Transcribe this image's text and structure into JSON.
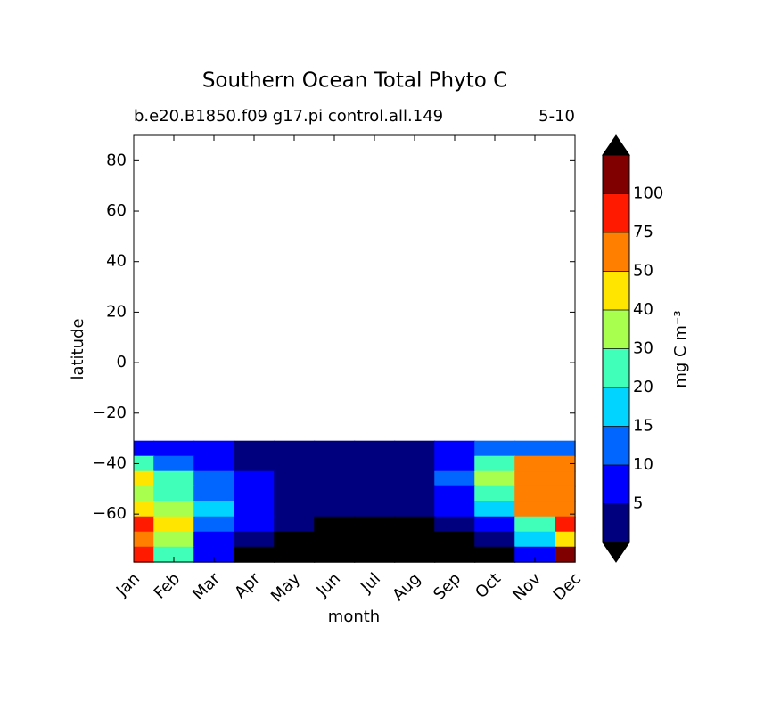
{
  "chart_data": {
    "type": "contour",
    "title": "Southern Ocean Total Phyto C",
    "subtitle_left": "b.e20.B1850.f09 g17.pi control.all.149",
    "subtitle_right": "5-10",
    "x_label": "month",
    "y_label": "latitude",
    "categories": [
      "Jan",
      "Feb",
      "Mar",
      "Apr",
      "May",
      "Jun",
      "Jul",
      "Aug",
      "Sep",
      "Oct",
      "Nov",
      "Dec"
    ],
    "y": [
      -34,
      -40,
      -46,
      -52,
      -58,
      -64,
      -70,
      -76
    ],
    "z": [
      [
        8,
        8,
        7,
        3,
        3,
        2,
        2,
        3,
        7,
        12,
        12,
        10
      ],
      [
        25,
        12,
        8,
        4,
        3,
        2,
        2,
        3,
        8,
        25,
        55,
        55
      ],
      [
        45,
        22,
        12,
        6,
        4,
        3,
        3,
        4,
        10,
        30,
        60,
        60
      ],
      [
        35,
        25,
        14,
        7,
        4,
        3,
        3,
        4,
        8,
        20,
        60,
        60
      ],
      [
        45,
        30,
        15,
        7,
        4,
        3,
        2,
        3,
        6,
        15,
        55,
        70
      ],
      [
        80,
        40,
        10,
        5,
        3,
        0.5,
        0.5,
        0.5,
        3,
        8,
        25,
        80
      ],
      [
        60,
        30,
        8,
        3,
        0.5,
        0.5,
        0.5,
        0.5,
        0.5,
        2,
        15,
        40
      ],
      [
        90,
        20,
        6,
        0.5,
        0.5,
        0.5,
        0.5,
        0.5,
        0.5,
        0.5,
        8,
        110
      ]
    ],
    "ylim": [
      -79,
      90
    ],
    "yticks": [
      {
        "value": -60,
        "label": "−60"
      },
      {
        "value": -40,
        "label": "−40"
      },
      {
        "value": -20,
        "label": "−20"
      },
      0,
      20,
      40,
      60,
      80
    ],
    "clim": [
      1,
      125
    ],
    "levels": [
      5,
      10,
      15,
      20,
      30,
      40,
      50,
      75,
      100
    ],
    "colors": [
      "#00007f",
      "#0000ff",
      "#0066ff",
      "#00d4ff",
      "#40ffb8",
      "#a8ff4e",
      "#ffe500",
      "#ff7f00",
      "#ff1a00",
      "#800000"
    ],
    "under_color": "#000000",
    "over_color": "#000000",
    "colorbar_label": "mg C m⁻³"
  }
}
